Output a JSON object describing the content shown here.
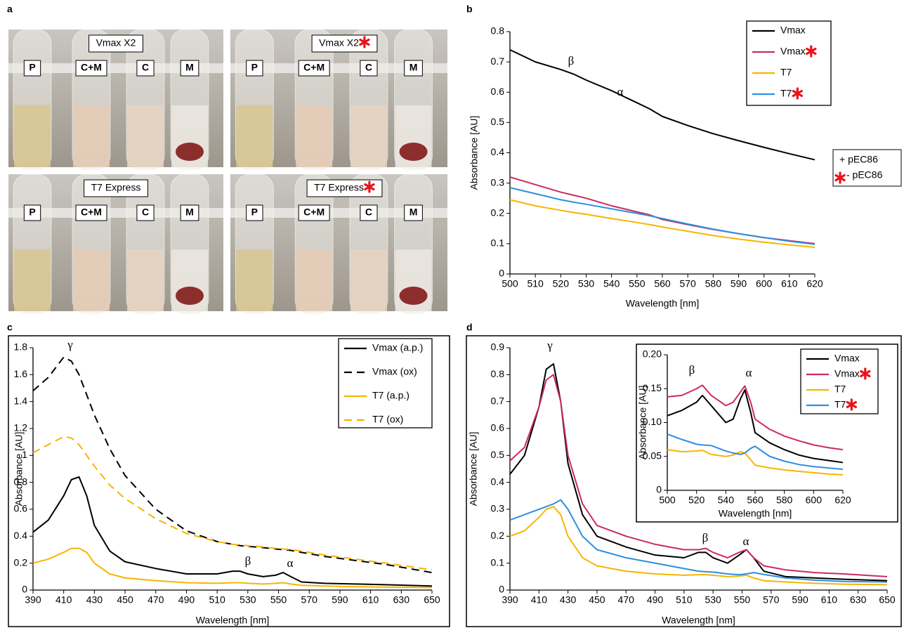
{
  "figure": {
    "panel": "a",
    "photos": [
      {
        "title": "Vmax X2",
        "starred": false,
        "tubes": [
          "P",
          "C+M",
          "C",
          "M"
        ]
      },
      {
        "title": "Vmax X2",
        "starred": true,
        "tubes": [
          "P",
          "C+M",
          "C",
          "M"
        ]
      },
      {
        "title": "T7 Express",
        "starred": false,
        "tubes": [
          "P",
          "C+M",
          "C",
          "M"
        ]
      },
      {
        "title": "T7 Express",
        "starred": true,
        "tubes": [
          "P",
          "C+M",
          "C",
          "M"
        ]
      }
    ]
  },
  "chart_data": [
    {
      "panel": "b",
      "type": "line",
      "xlabel": "Wavelength [nm]",
      "ylabel": "Absorbance [AU]",
      "xlim": [
        500,
        620
      ],
      "ylim": [
        0,
        0.8
      ],
      "xticks": [
        500,
        510,
        520,
        530,
        540,
        550,
        560,
        570,
        580,
        590,
        600,
        610,
        620
      ],
      "yticks": [
        0,
        0.1,
        0.2,
        0.3,
        0.4,
        0.5,
        0.6,
        0.7,
        0.8
      ],
      "annotations": [
        "β",
        "α"
      ],
      "key": [
        "+ pEC86",
        "- pEC86"
      ],
      "x": [
        500,
        510,
        520,
        525,
        530,
        540,
        550,
        555,
        560,
        570,
        580,
        590,
        600,
        610,
        620
      ],
      "series": [
        {
          "name": "Vmax",
          "color": "#000000",
          "starred": false,
          "values": [
            0.74,
            0.7,
            0.675,
            0.66,
            0.64,
            0.605,
            0.565,
            0.545,
            0.52,
            0.49,
            0.463,
            0.44,
            0.418,
            0.397,
            0.377
          ]
        },
        {
          "name": "Vmax",
          "color": "#cc2a62",
          "starred": true,
          "values": [
            0.32,
            0.295,
            0.27,
            0.26,
            0.25,
            0.225,
            0.205,
            0.195,
            0.18,
            0.163,
            0.147,
            0.133,
            0.12,
            0.11,
            0.1
          ]
        },
        {
          "name": "T7",
          "color": "#f7b500",
          "starred": false,
          "values": [
            0.245,
            0.225,
            0.21,
            0.203,
            0.197,
            0.183,
            0.17,
            0.163,
            0.155,
            0.141,
            0.127,
            0.115,
            0.105,
            0.096,
            0.088
          ]
        },
        {
          "name": "T7",
          "color": "#2f8ee0",
          "starred": true,
          "values": [
            0.285,
            0.265,
            0.245,
            0.237,
            0.23,
            0.215,
            0.2,
            0.192,
            0.183,
            0.165,
            0.148,
            0.133,
            0.12,
            0.108,
            0.098
          ]
        }
      ]
    },
    {
      "panel": "c",
      "type": "line",
      "xlabel": "Wavelength [nm]",
      "ylabel": "Absorbance [AU]",
      "xlim": [
        390,
        650
      ],
      "ylim": [
        0,
        1.8
      ],
      "xticks": [
        390,
        410,
        430,
        450,
        470,
        490,
        510,
        530,
        550,
        570,
        590,
        610,
        630,
        650
      ],
      "yticks": [
        0,
        0.2,
        0.4,
        0.6,
        0.8,
        1.0,
        1.2,
        1.4,
        1.6,
        1.8
      ],
      "annotations": [
        "γ",
        "β",
        "α"
      ],
      "x": [
        390,
        400,
        410,
        415,
        420,
        425,
        430,
        440,
        450,
        470,
        490,
        510,
        520,
        525,
        530,
        540,
        548,
        553,
        558,
        565,
        580,
        600,
        620,
        650
      ],
      "series": [
        {
          "name": "Vmax (a.p.)",
          "color": "#000000",
          "dashed": false,
          "values": [
            0.43,
            0.52,
            0.7,
            0.82,
            0.84,
            0.7,
            0.48,
            0.29,
            0.21,
            0.16,
            0.12,
            0.12,
            0.14,
            0.14,
            0.12,
            0.1,
            0.11,
            0.13,
            0.1,
            0.06,
            0.05,
            0.045,
            0.04,
            0.03
          ]
        },
        {
          "name": "Vmax (ox)",
          "color": "#000000",
          "dashed": true,
          "values": [
            1.48,
            1.58,
            1.73,
            1.7,
            1.6,
            1.45,
            1.3,
            1.05,
            0.85,
            0.6,
            0.44,
            0.36,
            0.34,
            0.33,
            0.325,
            0.315,
            0.305,
            0.3,
            0.295,
            0.28,
            0.25,
            0.22,
            0.19,
            0.13
          ]
        },
        {
          "name": "T7 (a.p.)",
          "color": "#f7b500",
          "dashed": false,
          "values": [
            0.2,
            0.23,
            0.28,
            0.31,
            0.31,
            0.28,
            0.2,
            0.12,
            0.09,
            0.07,
            0.055,
            0.05,
            0.055,
            0.055,
            0.05,
            0.045,
            0.05,
            0.055,
            0.045,
            0.035,
            0.03,
            0.025,
            0.022,
            0.018
          ]
        },
        {
          "name": "T7 (ox)",
          "color": "#f7b500",
          "dashed": true,
          "values": [
            1.02,
            1.08,
            1.14,
            1.13,
            1.08,
            1.0,
            0.92,
            0.78,
            0.68,
            0.53,
            0.42,
            0.36,
            0.34,
            0.335,
            0.33,
            0.32,
            0.31,
            0.305,
            0.3,
            0.29,
            0.26,
            0.23,
            0.2,
            0.15
          ]
        }
      ]
    },
    {
      "panel": "d",
      "type": "line",
      "xlabel": "Wavelength [nm]",
      "ylabel": "Absorbance [AU]",
      "xlim": [
        390,
        650
      ],
      "ylim": [
        0,
        0.9
      ],
      "xticks": [
        390,
        410,
        430,
        450,
        470,
        490,
        510,
        530,
        550,
        570,
        590,
        610,
        630,
        650
      ],
      "yticks": [
        0,
        0.1,
        0.2,
        0.3,
        0.4,
        0.5,
        0.6,
        0.7,
        0.8,
        0.9
      ],
      "annotations": [
        "γ",
        "β",
        "α"
      ],
      "x": [
        390,
        400,
        410,
        415,
        420,
        425,
        430,
        440,
        450,
        470,
        490,
        510,
        520,
        525,
        530,
        540,
        548,
        553,
        558,
        565,
        580,
        600,
        620,
        650
      ],
      "series": [
        {
          "color": "#000000",
          "values": [
            0.43,
            0.5,
            0.68,
            0.82,
            0.84,
            0.7,
            0.47,
            0.28,
            0.2,
            0.16,
            0.13,
            0.12,
            0.14,
            0.14,
            0.12,
            0.1,
            0.13,
            0.15,
            0.12,
            0.07,
            0.05,
            0.045,
            0.04,
            0.035
          ]
        },
        {
          "color": "#cc2a62",
          "values": [
            0.48,
            0.53,
            0.68,
            0.78,
            0.8,
            0.7,
            0.5,
            0.32,
            0.24,
            0.2,
            0.17,
            0.15,
            0.15,
            0.155,
            0.14,
            0.12,
            0.14,
            0.15,
            0.12,
            0.09,
            0.075,
            0.065,
            0.06,
            0.05
          ]
        },
        {
          "color": "#f7b500",
          "values": [
            0.2,
            0.22,
            0.27,
            0.3,
            0.31,
            0.28,
            0.2,
            0.12,
            0.09,
            0.07,
            0.06,
            0.055,
            0.057,
            0.057,
            0.055,
            0.05,
            0.052,
            0.055,
            0.045,
            0.035,
            0.03,
            0.025,
            0.022,
            0.02
          ]
        },
        {
          "color": "#2f8ee0",
          "values": [
            0.26,
            0.28,
            0.3,
            0.31,
            0.32,
            0.335,
            0.3,
            0.2,
            0.15,
            0.12,
            0.1,
            0.08,
            0.07,
            0.068,
            0.067,
            0.06,
            0.057,
            0.06,
            0.065,
            0.058,
            0.045,
            0.037,
            0.032,
            0.03
          ]
        }
      ]
    },
    {
      "type": "line",
      "xlabel": "Wavelength [nm]",
      "ylabel": "Absorbance [AU]",
      "xlim": [
        500,
        620
      ],
      "ylim": [
        0,
        0.2
      ],
      "xticks": [
        500,
        520,
        540,
        560,
        580,
        600,
        620
      ],
      "yticks": [
        0,
        0.05,
        {
          "value": 0.1,
          "label": "0.10"
        },
        0.15,
        {
          "value": 0.2,
          "label": "0.20"
        }
      ],
      "annotations": [
        "β",
        "α"
      ],
      "x": [
        500,
        510,
        520,
        524,
        530,
        540,
        545,
        550,
        553,
        557,
        560,
        570,
        580,
        590,
        600,
        610,
        620
      ],
      "series": [
        {
          "name": "Vmax",
          "color": "#000000",
          "starred": false,
          "values": [
            0.11,
            0.118,
            0.13,
            0.14,
            0.125,
            0.1,
            0.105,
            0.135,
            0.148,
            0.115,
            0.085,
            0.07,
            0.06,
            0.052,
            0.047,
            0.044,
            0.041
          ]
        },
        {
          "name": "Vmax",
          "color": "#cc2a62",
          "starred": true,
          "values": [
            0.138,
            0.14,
            0.15,
            0.155,
            0.14,
            0.125,
            0.13,
            0.145,
            0.154,
            0.13,
            0.105,
            0.09,
            0.08,
            0.073,
            0.067,
            0.063,
            0.06
          ]
        },
        {
          "name": "T7",
          "color": "#f7b500",
          "starred": false,
          "values": [
            0.06,
            0.057,
            0.058,
            0.059,
            0.053,
            0.05,
            0.052,
            0.057,
            0.055,
            0.045,
            0.037,
            0.033,
            0.03,
            0.028,
            0.026,
            0.024,
            0.023
          ]
        },
        {
          "name": "T7",
          "color": "#2f8ee0",
          "starred": true,
          "values": [
            0.083,
            0.075,
            0.068,
            0.067,
            0.066,
            0.058,
            0.055,
            0.053,
            0.055,
            0.062,
            0.065,
            0.05,
            0.043,
            0.038,
            0.035,
            0.033,
            0.031
          ]
        }
      ]
    }
  ]
}
